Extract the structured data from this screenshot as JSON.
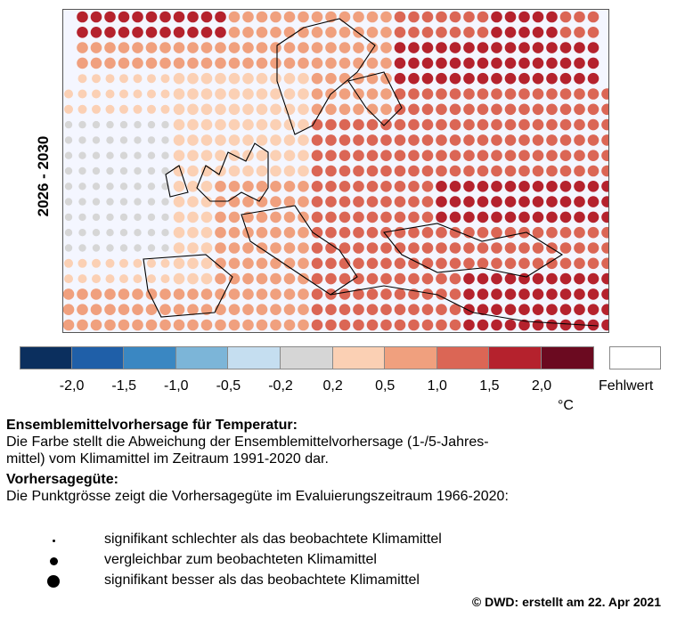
{
  "period_label": "2026 - 2030",
  "colorbar": {
    "colors": [
      "#0b2f5e",
      "#1f5fa8",
      "#3a87c2",
      "#7cb5d8",
      "#c5def0",
      "#d6d6d6",
      "#fbd0b4",
      "#f0a07e",
      "#db6655",
      "#b5222d",
      "#6b0a20"
    ],
    "ticks": [
      "-2,0",
      "-1,5",
      "-1,0",
      "-0,5",
      "-0,2",
      "0,2",
      "0,5",
      "1,0",
      "1,5",
      "2,0"
    ],
    "missing_label": "Fehlwert",
    "unit": "°C"
  },
  "legend": {
    "heading1": "Ensemblemittelvorhersage für Temperatur:",
    "desc1_line1": "Die Farbe stellt die Abweichung der Ensemblemittelvorhersage (1-/5-Jahres-",
    "desc1_line2": "mittel) vom Klimamittel im Zeitraum 1991-2020 dar.",
    "heading2": "Vorhersagegüte:",
    "desc2": "Die Punktgrösse zeigt die Vorhersagegüte im Evaluierungszeitraum 1966-2020:",
    "sizes": [
      {
        "label": "signifikant schlechter als das beobachtete Klimamittel"
      },
      {
        "label": "vergleichbar zum beobachteten Klimamittel"
      },
      {
        "label": "signifikant besser als das beobachtete Klimamittel"
      }
    ]
  },
  "credit": "© DWD: erstellt am 22. Apr 2021"
}
